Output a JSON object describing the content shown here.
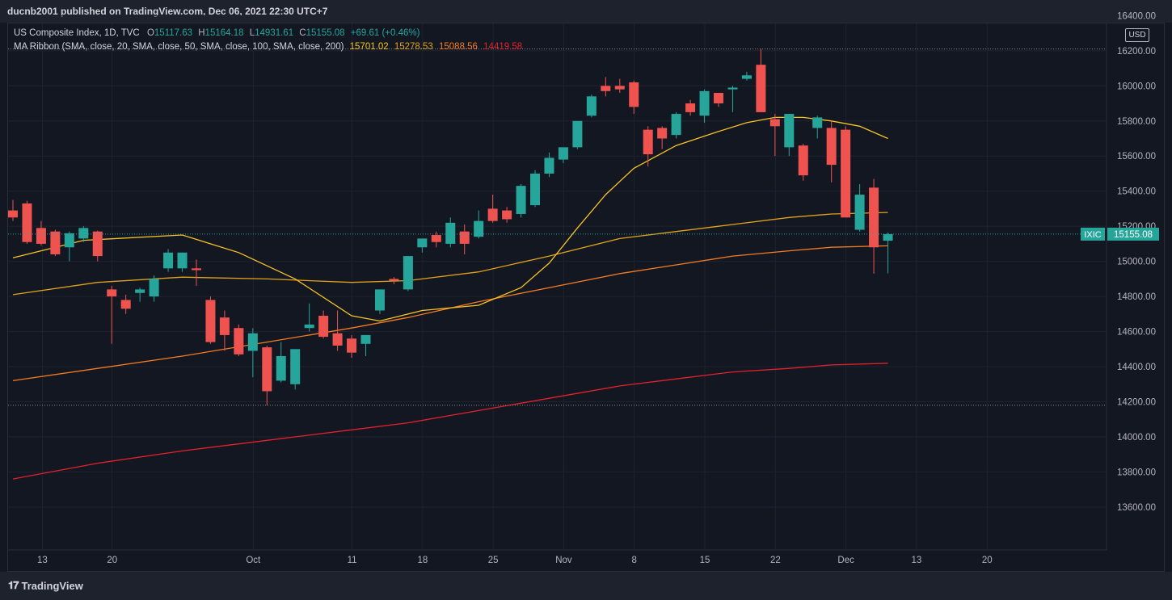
{
  "header": {
    "published": "ducnb2001 published on TradingView.com, Dec 06, 2021 22:30 UTC+7"
  },
  "legend": {
    "symbol": "US Composite Index, 1D, TVC",
    "o_label": "O",
    "o_value": "15117.63",
    "h_label": "H",
    "h_value": "15164.18",
    "l_label": "L",
    "l_value": "14931.61",
    "c_label": "C",
    "c_value": "15155.08",
    "change": "+69.61 (+0.46%)",
    "ma_title": "MA Ribbon (SMA, close, 20, SMA, close, 50, SMA, close, 100, SMA, close, 200)",
    "ma20": "15701.02",
    "ma50": "15278.53",
    "ma100": "15088.56",
    "ma200": "14419.58"
  },
  "price_axis": {
    "currency": "USD"
  },
  "last_price": {
    "symbol": "IXIC",
    "value": "15155.08"
  },
  "footer": {
    "brand": "TradingView"
  },
  "colors": {
    "up": "#26a69a",
    "down": "#ef5350",
    "ma20": "#f7c325",
    "ma50": "#e0a31a",
    "ma100": "#f57c20",
    "ma200": "#e3212a"
  },
  "chart_data": {
    "type": "candlestick",
    "ylim": [
      13500,
      16450
    ],
    "yticks": [
      "13600.00",
      "13800.00",
      "14000.00",
      "14200.00",
      "14400.00",
      "14600.00",
      "14800.00",
      "15000.00",
      "15200.00",
      "15400.00",
      "15600.00",
      "15800.00",
      "16000.00",
      "16200.00",
      "16400.00"
    ],
    "xticks": [
      "13",
      "20",
      "Oct",
      "11",
      "18",
      "25",
      "Nov",
      "8",
      "15",
      "22",
      "Dec",
      "13",
      "20"
    ],
    "candles": [
      {
        "o": 15290,
        "h": 15350,
        "l": 15230,
        "c": 15250
      },
      {
        "o": 15330,
        "h": 15345,
        "l": 15100,
        "c": 15110
      },
      {
        "o": 15190,
        "h": 15230,
        "l": 15090,
        "c": 15100
      },
      {
        "o": 15170,
        "h": 15180,
        "l": 15030,
        "c": 15040
      },
      {
        "o": 15080,
        "h": 15170,
        "l": 15000,
        "c": 15160
      },
      {
        "o": 15130,
        "h": 15200,
        "l": 15110,
        "c": 15190
      },
      {
        "o": 15170,
        "h": 15175,
        "l": 15000,
        "c": 15030
      },
      {
        "o": 14840,
        "h": 14860,
        "l": 14530,
        "c": 14800
      },
      {
        "o": 14780,
        "h": 14810,
        "l": 14700,
        "c": 14730
      },
      {
        "o": 14820,
        "h": 14850,
        "l": 14770,
        "c": 14840
      },
      {
        "o": 14800,
        "h": 14920,
        "l": 14770,
        "c": 14900
      },
      {
        "o": 14960,
        "h": 15070,
        "l": 14940,
        "c": 15050
      },
      {
        "o": 14960,
        "h": 15050,
        "l": 14940,
        "c": 15050
      },
      {
        "o": 14960,
        "h": 15010,
        "l": 14860,
        "c": 14950
      },
      {
        "o": 14780,
        "h": 14800,
        "l": 14530,
        "c": 14540
      },
      {
        "o": 14680,
        "h": 14720,
        "l": 14490,
        "c": 14580
      },
      {
        "o": 14620,
        "h": 14640,
        "l": 14460,
        "c": 14470
      },
      {
        "o": 14490,
        "h": 14620,
        "l": 14340,
        "c": 14590
      },
      {
        "o": 14510,
        "h": 14520,
        "l": 14180,
        "c": 14260
      },
      {
        "o": 14320,
        "h": 14540,
        "l": 14310,
        "c": 14460
      },
      {
        "o": 14300,
        "h": 14500,
        "l": 14270,
        "c": 14500
      },
      {
        "o": 14620,
        "h": 14760,
        "l": 14600,
        "c": 14640
      },
      {
        "o": 14690,
        "h": 14720,
        "l": 14560,
        "c": 14570
      },
      {
        "o": 14590,
        "h": 14720,
        "l": 14490,
        "c": 14520
      },
      {
        "o": 14560,
        "h": 14580,
        "l": 14450,
        "c": 14480
      },
      {
        "o": 14530,
        "h": 14560,
        "l": 14460,
        "c": 14580
      },
      {
        "o": 14720,
        "h": 14840,
        "l": 14700,
        "c": 14840
      },
      {
        "o": 14900,
        "h": 14910,
        "l": 14870,
        "c": 14890
      },
      {
        "o": 14840,
        "h": 15030,
        "l": 14830,
        "c": 15030
      },
      {
        "o": 15080,
        "h": 15110,
        "l": 15050,
        "c": 15130
      },
      {
        "o": 15150,
        "h": 15170,
        "l": 15080,
        "c": 15110
      },
      {
        "o": 15100,
        "h": 15250,
        "l": 15080,
        "c": 15220
      },
      {
        "o": 15170,
        "h": 15210,
        "l": 15040,
        "c": 15100
      },
      {
        "o": 15140,
        "h": 15290,
        "l": 15130,
        "c": 15230
      },
      {
        "o": 15300,
        "h": 15380,
        "l": 15220,
        "c": 15230
      },
      {
        "o": 15290,
        "h": 15310,
        "l": 15220,
        "c": 15240
      },
      {
        "o": 15270,
        "h": 15440,
        "l": 15250,
        "c": 15430
      },
      {
        "o": 15320,
        "h": 15520,
        "l": 15310,
        "c": 15500
      },
      {
        "o": 15500,
        "h": 15620,
        "l": 15480,
        "c": 15590
      },
      {
        "o": 15580,
        "h": 15640,
        "l": 15560,
        "c": 15650
      },
      {
        "o": 15650,
        "h": 15800,
        "l": 15640,
        "c": 15800
      },
      {
        "o": 15830,
        "h": 15950,
        "l": 15820,
        "c": 15940
      },
      {
        "o": 16000,
        "h": 16050,
        "l": 15940,
        "c": 15970
      },
      {
        "o": 16000,
        "h": 16040,
        "l": 15960,
        "c": 15980
      },
      {
        "o": 16020,
        "h": 16030,
        "l": 15840,
        "c": 15880
      },
      {
        "o": 15750,
        "h": 15770,
        "l": 15540,
        "c": 15610
      },
      {
        "o": 15760,
        "h": 15770,
        "l": 15640,
        "c": 15700
      },
      {
        "o": 15720,
        "h": 15850,
        "l": 15700,
        "c": 15840
      },
      {
        "o": 15900,
        "h": 15920,
        "l": 15830,
        "c": 15850
      },
      {
        "o": 15830,
        "h": 15980,
        "l": 15790,
        "c": 15970
      },
      {
        "o": 15960,
        "h": 15960,
        "l": 15880,
        "c": 15900
      },
      {
        "o": 15980,
        "h": 16000,
        "l": 15850,
        "c": 15990
      },
      {
        "o": 16040,
        "h": 16080,
        "l": 16030,
        "c": 16060
      },
      {
        "o": 16120,
        "h": 16210,
        "l": 15850,
        "c": 15850
      },
      {
        "o": 15810,
        "h": 15840,
        "l": 15600,
        "c": 15770
      },
      {
        "o": 15650,
        "h": 15840,
        "l": 15600,
        "c": 15840
      },
      {
        "o": 15660,
        "h": 15670,
        "l": 15460,
        "c": 15490
      },
      {
        "o": 15760,
        "h": 15830,
        "l": 15700,
        "c": 15820
      },
      {
        "o": 15760,
        "h": 15800,
        "l": 15450,
        "c": 15550
      },
      {
        "o": 15750,
        "h": 15770,
        "l": 15260,
        "c": 15250
      },
      {
        "o": 15180,
        "h": 15440,
        "l": 15170,
        "c": 15380
      },
      {
        "o": 15420,
        "h": 15470,
        "l": 14930,
        "c": 15080
      },
      {
        "o": 15117.63,
        "h": 15164.18,
        "l": 14931.61,
        "c": 15155.08
      }
    ],
    "ma20": [
      [
        0,
        15020
      ],
      [
        5,
        15120
      ],
      [
        12,
        15150
      ],
      [
        16,
        15050
      ],
      [
        20,
        14900
      ],
      [
        24,
        14690
      ],
      [
        26,
        14660
      ],
      [
        29,
        14720
      ],
      [
        33,
        14750
      ],
      [
        36,
        14850
      ],
      [
        38,
        14990
      ],
      [
        40,
        15190
      ],
      [
        42,
        15380
      ],
      [
        44,
        15530
      ],
      [
        47,
        15660
      ],
      [
        50,
        15740
      ],
      [
        52,
        15790
      ],
      [
        54,
        15820
      ],
      [
        56,
        15820
      ],
      [
        58,
        15800
      ],
      [
        60,
        15770
      ],
      [
        62,
        15700
      ]
    ],
    "ma50": [
      [
        0,
        14810
      ],
      [
        6,
        14880
      ],
      [
        12,
        14910
      ],
      [
        18,
        14900
      ],
      [
        24,
        14880
      ],
      [
        28,
        14890
      ],
      [
        33,
        14940
      ],
      [
        38,
        15030
      ],
      [
        43,
        15130
      ],
      [
        47,
        15170
      ],
      [
        51,
        15210
      ],
      [
        55,
        15250
      ],
      [
        58,
        15270
      ],
      [
        62,
        15278.53
      ]
    ],
    "ma100": [
      [
        0,
        14320
      ],
      [
        6,
        14390
      ],
      [
        12,
        14460
      ],
      [
        18,
        14540
      ],
      [
        24,
        14620
      ],
      [
        28,
        14680
      ],
      [
        33,
        14770
      ],
      [
        38,
        14850
      ],
      [
        43,
        14930
      ],
      [
        47,
        14980
      ],
      [
        51,
        15030
      ],
      [
        55,
        15060
      ],
      [
        58,
        15080
      ],
      [
        62,
        15088.56
      ]
    ],
    "ma200": [
      [
        0,
        13760
      ],
      [
        6,
        13850
      ],
      [
        12,
        13920
      ],
      [
        18,
        13980
      ],
      [
        24,
        14040
      ],
      [
        28,
        14080
      ],
      [
        33,
        14150
      ],
      [
        38,
        14220
      ],
      [
        43,
        14290
      ],
      [
        47,
        14330
      ],
      [
        51,
        14370
      ],
      [
        55,
        14390
      ],
      [
        58,
        14410
      ],
      [
        62,
        14419.58
      ]
    ]
  }
}
